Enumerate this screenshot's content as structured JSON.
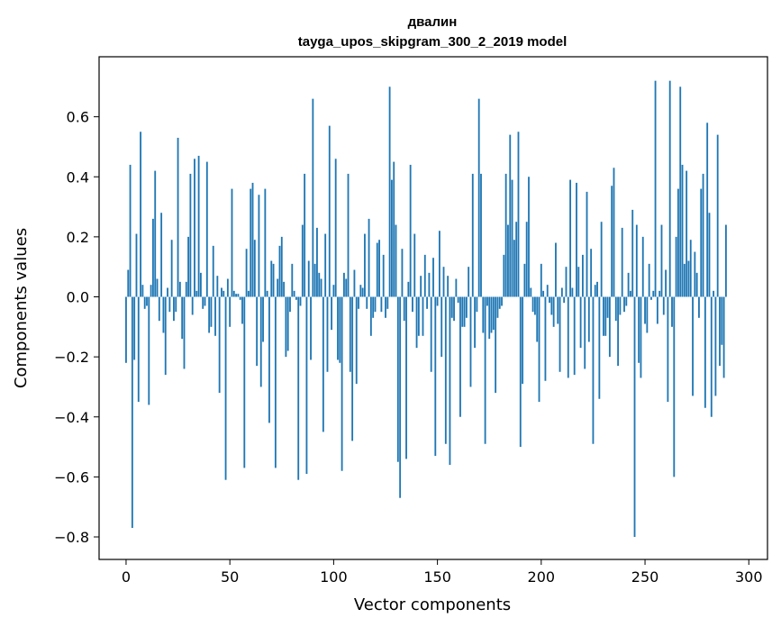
{
  "chart_data": {
    "type": "bar",
    "title": "двалин",
    "subtitle": "tayga_upos_skipgram_300_2_2019 model",
    "xlabel": "Vector components",
    "ylabel": "Components values",
    "xlim": [
      -13,
      309
    ],
    "ylim": [
      -0.875,
      0.8
    ],
    "xticks": [
      0,
      50,
      100,
      150,
      200,
      250,
      300
    ],
    "xtick_labels": [
      "0",
      "50",
      "100",
      "150",
      "200",
      "250",
      "300"
    ],
    "yticks": [
      -0.8,
      -0.6,
      -0.4,
      -0.2,
      0.0,
      0.2,
      0.4,
      0.6
    ],
    "ytick_labels": [
      "−0.8",
      "−0.6",
      "−0.4",
      "−0.2",
      "0.0",
      "0.2",
      "0.4",
      "0.6"
    ],
    "bar_color": "#1f77b4",
    "grid": false,
    "values": [
      -0.22,
      0.09,
      0.44,
      -0.77,
      -0.21,
      0.21,
      -0.35,
      0.55,
      0.04,
      -0.04,
      -0.03,
      -0.36,
      0.04,
      0.26,
      0.42,
      0.06,
      -0.08,
      0.28,
      -0.12,
      -0.26,
      0.03,
      -0.05,
      0.19,
      -0.08,
      -0.05,
      0.53,
      0.05,
      -0.14,
      -0.24,
      0.05,
      0.2,
      0.41,
      -0.06,
      0.46,
      0.02,
      0.47,
      0.08,
      -0.04,
      -0.03,
      0.45,
      -0.12,
      -0.1,
      0.17,
      -0.13,
      0.07,
      -0.32,
      0.03,
      0.02,
      -0.61,
      0.06,
      -0.1,
      0.36,
      0.02,
      0.01,
      0.01,
      -0.01,
      -0.09,
      -0.57,
      0.16,
      0.02,
      0.36,
      0.38,
      0.19,
      -0.23,
      0.34,
      -0.3,
      -0.15,
      0.36,
      0.02,
      -0.42,
      0.12,
      0.11,
      -0.57,
      0.06,
      0.17,
      0.2,
      0.05,
      -0.2,
      -0.18,
      -0.05,
      0.11,
      0.02,
      -0.01,
      -0.61,
      -0.03,
      0.24,
      0.41,
      -0.59,
      0.12,
      -0.21,
      0.66,
      0.11,
      0.23,
      0.08,
      0.06,
      -0.45,
      0.21,
      -0.25,
      0.57,
      -0.11,
      0.04,
      0.46,
      -0.21,
      -0.22,
      -0.58,
      0.08,
      0.06,
      0.41,
      -0.25,
      -0.48,
      0.09,
      -0.29,
      -0.04,
      0.04,
      0.03,
      0.21,
      -0.04,
      0.26,
      -0.13,
      -0.07,
      -0.05,
      0.18,
      0.19,
      -0.05,
      0.14,
      -0.07,
      -0.04,
      0.7,
      0.39,
      0.45,
      0.24,
      -0.55,
      -0.67,
      0.16,
      -0.08,
      -0.54,
      0.05,
      0.44,
      -0.05,
      0.21,
      -0.17,
      -0.13,
      0.07,
      -0.13,
      0.14,
      -0.04,
      0.08,
      -0.25,
      0.13,
      -0.53,
      -0.03,
      0.22,
      -0.2,
      0.1,
      -0.49,
      0.07,
      -0.56,
      -0.07,
      -0.08,
      0.06,
      -0.02,
      -0.4,
      -0.1,
      -0.1,
      -0.07,
      0.1,
      -0.3,
      0.41,
      -0.17,
      -0.05,
      0.66,
      0.41,
      -0.12,
      -0.49,
      -0.03,
      -0.14,
      -0.12,
      -0.11,
      -0.32,
      -0.07,
      -0.04,
      -0.03,
      0.14,
      0.41,
      0.24,
      0.54,
      0.39,
      0.19,
      0.25,
      0.55,
      -0.5,
      -0.29,
      0.11,
      0.25,
      0.4,
      0.03,
      -0.05,
      -0.06,
      -0.15,
      -0.35,
      0.11,
      0.02,
      -0.28,
      0.04,
      -0.02,
      -0.06,
      -0.1,
      0.18,
      -0.09,
      -0.25,
      0.03,
      -0.02,
      0.1,
      -0.27,
      0.39,
      0.03,
      -0.26,
      0.38,
      0.1,
      -0.17,
      0.14,
      -0.24,
      0.35,
      -0.15,
      0.16,
      -0.49,
      0.04,
      0.05,
      -0.34,
      0.25,
      -0.13,
      -0.13,
      -0.07,
      -0.2,
      0.37,
      0.43,
      -0.08,
      -0.23,
      -0.06,
      0.23,
      -0.05,
      -0.03,
      0.08,
      0.02,
      0.29,
      -0.8,
      0.24,
      -0.22,
      -0.27,
      0.2,
      -0.09,
      -0.12,
      0.11,
      -0.01,
      0.02,
      0.72,
      -0.09,
      0.02,
      0.24,
      -0.06,
      0.09,
      -0.35,
      0.72,
      -0.1,
      -0.6,
      0.2,
      0.36,
      0.7,
      0.44,
      0.11,
      0.42,
      0.12,
      0.19,
      -0.33,
      0.15,
      0.08,
      -0.07,
      0.36,
      0.41,
      -0.37,
      0.58,
      0.28,
      -0.4,
      0.02,
      -0.33,
      0.54,
      -0.23,
      -0.16,
      -0.27,
      0.24
    ]
  }
}
